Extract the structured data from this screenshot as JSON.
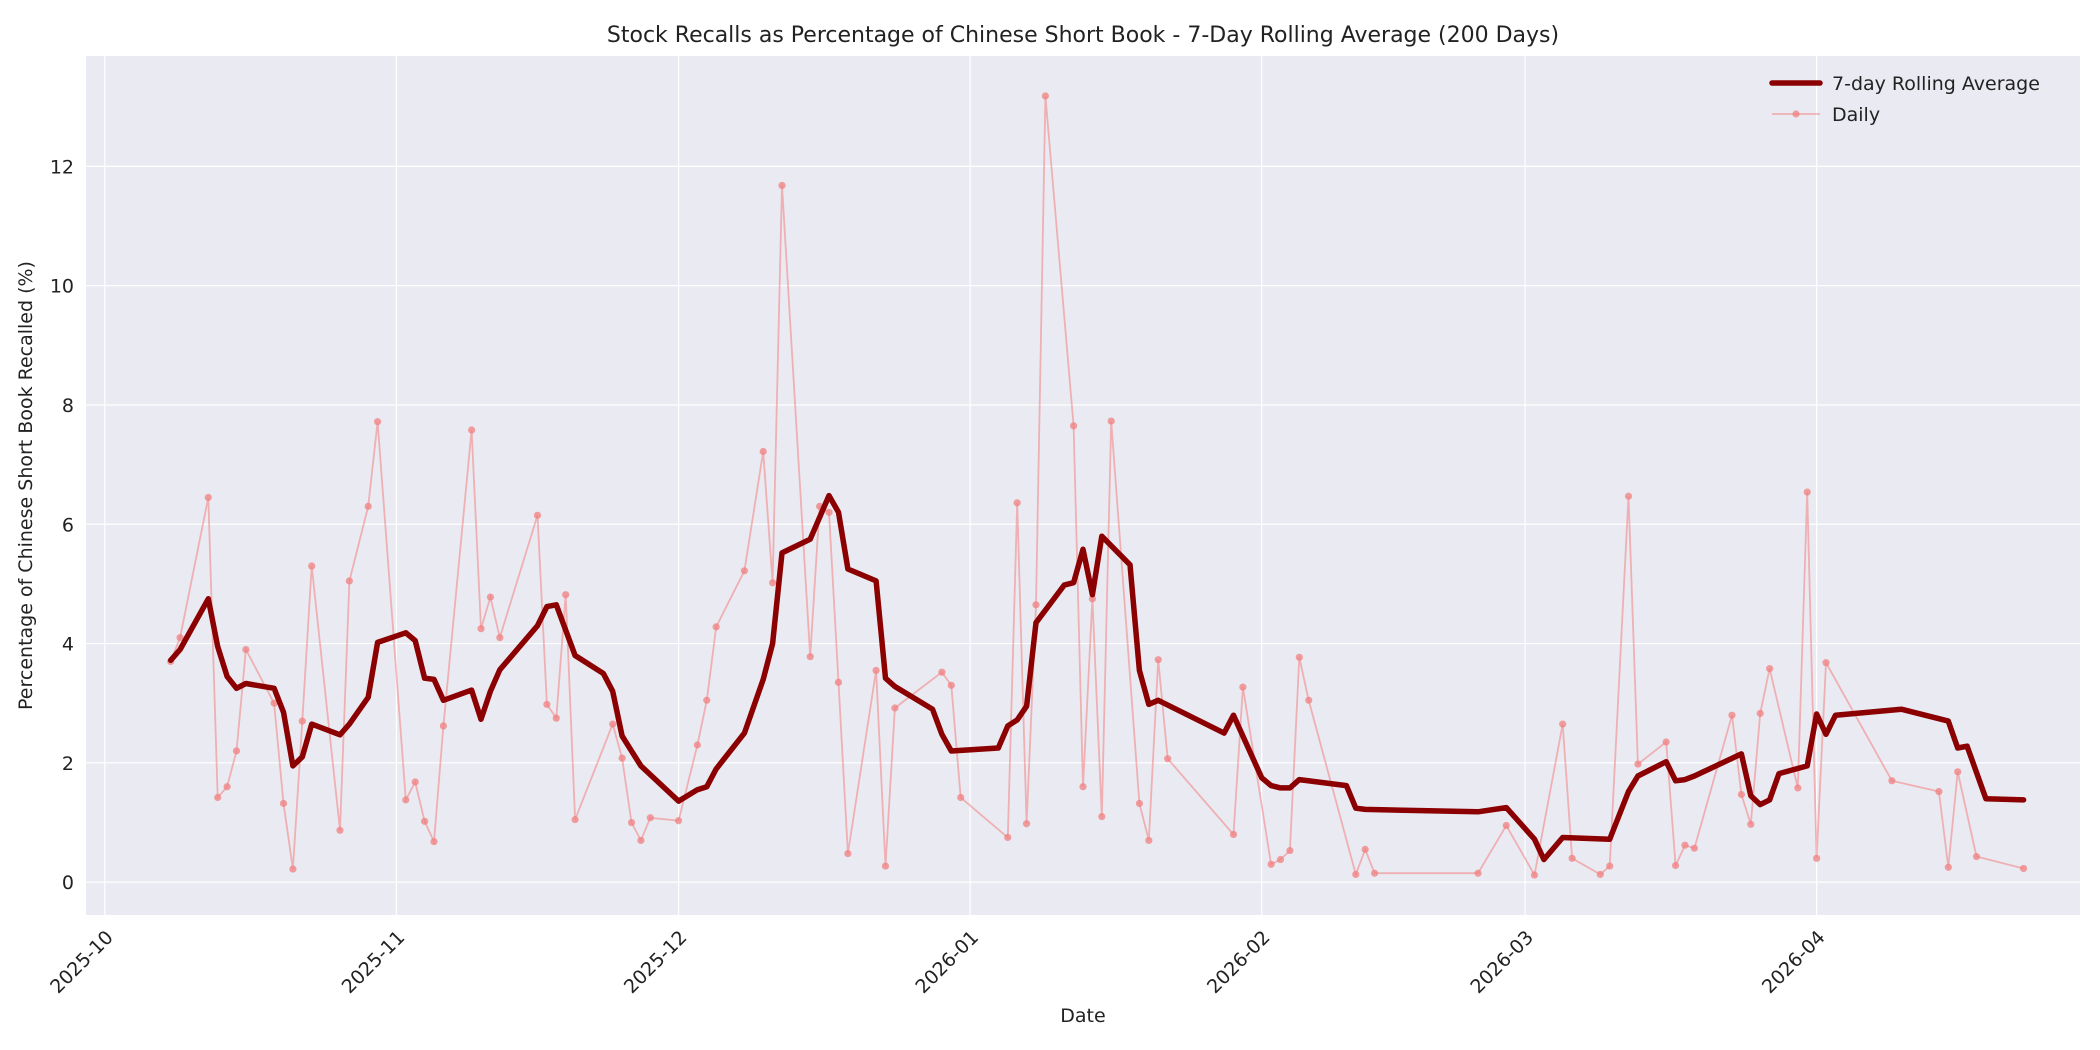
{
  "chart_data": {
    "type": "line",
    "title": "Stock Recalls as Percentage of Chinese Short Book - 7-Day Rolling Average (200 Days)",
    "xlabel": "Date",
    "ylabel": "Percentage of Chinese Short Book Recalled (%)",
    "xlim": [
      "2025-09-29",
      "2026-04-29"
    ],
    "ylim": [
      -0.55,
      13.85
    ],
    "x_ticks": [
      "2025-10",
      "2025-11",
      "2025-12",
      "2026-01",
      "2026-02",
      "2026-03",
      "2026-04"
    ],
    "y_ticks": [
      0,
      2,
      4,
      6,
      8,
      10,
      12
    ],
    "grid": true,
    "legend_position": "top-right",
    "colors": {
      "rolling": "#8b0000",
      "daily": "#f08080",
      "plot_bg": "#eaeaf2",
      "grid": "#ffffff"
    },
    "series": [
      {
        "name": "7-day Rolling Average",
        "style": "thick-line",
        "color": "#8b0000",
        "points": [
          [
            "2025-10-08",
            3.72
          ],
          [
            "2025-10-09",
            3.9
          ],
          [
            "2025-10-12",
            4.75
          ],
          [
            "2025-10-13",
            3.95
          ],
          [
            "2025-10-14",
            3.45
          ],
          [
            "2025-10-15",
            3.25
          ],
          [
            "2025-10-16",
            3.33
          ],
          [
            "2025-10-19",
            3.25
          ],
          [
            "2025-10-20",
            2.85
          ],
          [
            "2025-10-21",
            1.95
          ],
          [
            "2025-10-22",
            2.1
          ],
          [
            "2025-10-23",
            2.65
          ],
          [
            "2025-10-26",
            2.47
          ],
          [
            "2025-10-27",
            2.65
          ],
          [
            "2025-10-29",
            3.1
          ],
          [
            "2025-10-30",
            4.02
          ],
          [
            "2025-11-02",
            4.18
          ],
          [
            "2025-11-03",
            4.05
          ],
          [
            "2025-11-04",
            3.42
          ],
          [
            "2025-11-05",
            3.4
          ],
          [
            "2025-11-06",
            3.05
          ],
          [
            "2025-11-09",
            3.22
          ],
          [
            "2025-11-10",
            2.73
          ],
          [
            "2025-11-11",
            3.2
          ],
          [
            "2025-11-12",
            3.56
          ],
          [
            "2025-11-16",
            4.3
          ],
          [
            "2025-11-17",
            4.62
          ],
          [
            "2025-11-18",
            4.65
          ],
          [
            "2025-11-20",
            3.8
          ],
          [
            "2025-11-23",
            3.5
          ],
          [
            "2025-11-24",
            3.2
          ],
          [
            "2025-11-25",
            2.45
          ],
          [
            "2025-11-27",
            1.95
          ],
          [
            "2025-12-01",
            1.36
          ],
          [
            "2025-12-03",
            1.55
          ],
          [
            "2025-12-04",
            1.6
          ],
          [
            "2025-12-05",
            1.9
          ],
          [
            "2025-12-08",
            2.5
          ],
          [
            "2025-12-10",
            3.4
          ],
          [
            "2025-12-11",
            4.0
          ],
          [
            "2025-12-12",
            5.52
          ],
          [
            "2025-12-15",
            5.75
          ],
          [
            "2025-12-17",
            6.48
          ],
          [
            "2025-12-18",
            6.2
          ],
          [
            "2025-12-19",
            5.25
          ],
          [
            "2025-12-22",
            5.05
          ],
          [
            "2025-12-23",
            3.42
          ],
          [
            "2025-12-24",
            3.28
          ],
          [
            "2025-12-28",
            2.9
          ],
          [
            "2025-12-29",
            2.48
          ],
          [
            "2025-12-30",
            2.2
          ],
          [
            "2026-01-04",
            2.25
          ],
          [
            "2026-01-05",
            2.62
          ],
          [
            "2026-01-06",
            2.72
          ],
          [
            "2026-01-07",
            2.95
          ],
          [
            "2026-01-08",
            4.35
          ],
          [
            "2026-01-11",
            4.98
          ],
          [
            "2026-01-12",
            5.02
          ],
          [
            "2026-01-13",
            5.58
          ],
          [
            "2026-01-14",
            4.82
          ],
          [
            "2026-01-15",
            5.8
          ],
          [
            "2026-01-18",
            5.32
          ],
          [
            "2026-01-19",
            3.55
          ],
          [
            "2026-01-20",
            2.98
          ],
          [
            "2026-01-21",
            3.05
          ],
          [
            "2026-01-28",
            2.5
          ],
          [
            "2026-01-29",
            2.8
          ],
          [
            "2026-02-01",
            1.75
          ],
          [
            "2026-02-02",
            1.62
          ],
          [
            "2026-02-03",
            1.58
          ],
          [
            "2026-02-04",
            1.58
          ],
          [
            "2026-02-05",
            1.72
          ],
          [
            "2026-02-10",
            1.62
          ],
          [
            "2026-02-11",
            1.24
          ],
          [
            "2026-02-12",
            1.22
          ],
          [
            "2026-02-24",
            1.18
          ],
          [
            "2026-02-27",
            1.25
          ],
          [
            "2026-03-02",
            0.72
          ],
          [
            "2026-03-03",
            0.38
          ],
          [
            "2026-03-05",
            0.75
          ],
          [
            "2026-03-10",
            0.72
          ],
          [
            "2026-03-12",
            1.52
          ],
          [
            "2026-03-13",
            1.78
          ],
          [
            "2026-03-16",
            2.02
          ],
          [
            "2026-03-17",
            1.7
          ],
          [
            "2026-03-18",
            1.72
          ],
          [
            "2026-03-19",
            1.78
          ],
          [
            "2026-03-24",
            2.15
          ],
          [
            "2026-03-25",
            1.45
          ],
          [
            "2026-03-26",
            1.3
          ],
          [
            "2026-03-27",
            1.38
          ],
          [
            "2026-03-28",
            1.82
          ],
          [
            "2026-03-31",
            1.95
          ],
          [
            "2026-04-01",
            2.82
          ],
          [
            "2026-04-02",
            2.48
          ],
          [
            "2026-04-03",
            2.8
          ],
          [
            "2026-04-10",
            2.9
          ],
          [
            "2026-04-15",
            2.7
          ],
          [
            "2026-04-16",
            2.25
          ],
          [
            "2026-04-17",
            2.28
          ],
          [
            "2026-04-19",
            1.4
          ],
          [
            "2026-04-23",
            1.38
          ]
        ]
      },
      {
        "name": "Daily",
        "style": "thin-line-markers",
        "color": "#f08080",
        "points": [
          [
            "2025-10-08",
            3.7
          ],
          [
            "2025-10-09",
            4.1
          ],
          [
            "2025-10-12",
            6.45
          ],
          [
            "2025-10-13",
            1.42
          ],
          [
            "2025-10-14",
            1.6
          ],
          [
            "2025-10-15",
            2.2
          ],
          [
            "2025-10-16",
            3.9
          ],
          [
            "2025-10-19",
            3.0
          ],
          [
            "2025-10-20",
            1.32
          ],
          [
            "2025-10-21",
            0.22
          ],
          [
            "2025-10-22",
            2.7
          ],
          [
            "2025-10-23",
            5.3
          ],
          [
            "2025-10-26",
            0.87
          ],
          [
            "2025-10-27",
            5.05
          ],
          [
            "2025-10-29",
            6.3
          ],
          [
            "2025-10-30",
            7.72
          ],
          [
            "2025-11-02",
            1.38
          ],
          [
            "2025-11-03",
            1.68
          ],
          [
            "2025-11-04",
            1.02
          ],
          [
            "2025-11-05",
            0.68
          ],
          [
            "2025-11-06",
            2.62
          ],
          [
            "2025-11-09",
            7.58
          ],
          [
            "2025-11-10",
            4.25
          ],
          [
            "2025-11-11",
            4.78
          ],
          [
            "2025-11-12",
            4.1
          ],
          [
            "2025-11-16",
            6.15
          ],
          [
            "2025-11-17",
            2.98
          ],
          [
            "2025-11-18",
            2.75
          ],
          [
            "2025-11-19",
            4.82
          ],
          [
            "2025-11-20",
            1.05
          ],
          [
            "2025-11-24",
            2.65
          ],
          [
            "2025-11-25",
            2.08
          ],
          [
            "2025-11-26",
            1.0
          ],
          [
            "2025-11-27",
            0.7
          ],
          [
            "2025-11-28",
            1.08
          ],
          [
            "2025-12-01",
            1.03
          ],
          [
            "2025-12-03",
            2.3
          ],
          [
            "2025-12-04",
            3.05
          ],
          [
            "2025-12-05",
            4.28
          ],
          [
            "2025-12-08",
            5.22
          ],
          [
            "2025-12-10",
            7.22
          ],
          [
            "2025-12-11",
            5.02
          ],
          [
            "2025-12-12",
            11.68
          ],
          [
            "2025-12-15",
            3.78
          ],
          [
            "2025-12-16",
            6.3
          ],
          [
            "2025-12-17",
            6.2
          ],
          [
            "2025-12-18",
            3.35
          ],
          [
            "2025-12-19",
            0.48
          ],
          [
            "2025-12-22",
            3.55
          ],
          [
            "2025-12-23",
            0.27
          ],
          [
            "2025-12-24",
            2.92
          ],
          [
            "2025-12-29",
            3.52
          ],
          [
            "2025-12-30",
            3.3
          ],
          [
            "2025-12-31",
            1.42
          ],
          [
            "2026-01-05",
            0.75
          ],
          [
            "2026-01-06",
            6.36
          ],
          [
            "2026-01-07",
            0.98
          ],
          [
            "2026-01-08",
            4.65
          ],
          [
            "2026-01-09",
            13.18
          ],
          [
            "2026-01-12",
            7.65
          ],
          [
            "2026-01-13",
            1.6
          ],
          [
            "2026-01-14",
            4.75
          ],
          [
            "2026-01-15",
            1.1
          ],
          [
            "2026-01-16",
            7.73
          ],
          [
            "2026-01-19",
            1.32
          ],
          [
            "2026-01-20",
            0.7
          ],
          [
            "2026-01-21",
            3.73
          ],
          [
            "2026-01-22",
            2.07
          ],
          [
            "2026-01-29",
            0.8
          ],
          [
            "2026-01-30",
            3.27
          ],
          [
            "2026-02-02",
            0.3
          ],
          [
            "2026-02-03",
            0.38
          ],
          [
            "2026-02-04",
            0.53
          ],
          [
            "2026-02-05",
            3.77
          ],
          [
            "2026-02-06",
            3.05
          ],
          [
            "2026-02-11",
            0.13
          ],
          [
            "2026-02-12",
            0.55
          ],
          [
            "2026-02-13",
            0.15
          ],
          [
            "2026-02-24",
            0.15
          ],
          [
            "2026-02-27",
            0.95
          ],
          [
            "2026-03-02",
            0.12
          ],
          [
            "2026-03-05",
            2.65
          ],
          [
            "2026-03-06",
            0.4
          ],
          [
            "2026-03-09",
            0.13
          ],
          [
            "2026-03-10",
            0.27
          ],
          [
            "2026-03-12",
            6.47
          ],
          [
            "2026-03-13",
            1.98
          ],
          [
            "2026-03-16",
            2.35
          ],
          [
            "2026-03-17",
            0.28
          ],
          [
            "2026-03-18",
            0.62
          ],
          [
            "2026-03-19",
            0.57
          ],
          [
            "2026-03-23",
            2.8
          ],
          [
            "2026-03-24",
            1.47
          ],
          [
            "2026-03-25",
            0.97
          ],
          [
            "2026-03-26",
            2.83
          ],
          [
            "2026-03-27",
            3.58
          ],
          [
            "2026-03-30",
            1.58
          ],
          [
            "2026-03-31",
            6.54
          ],
          [
            "2026-04-01",
            0.4
          ],
          [
            "2026-04-02",
            3.68
          ],
          [
            "2026-04-09",
            1.7
          ],
          [
            "2026-04-14",
            1.52
          ],
          [
            "2026-04-15",
            0.25
          ],
          [
            "2026-04-16",
            1.85
          ],
          [
            "2026-04-18",
            0.43
          ],
          [
            "2026-04-23",
            0.23
          ]
        ]
      }
    ]
  }
}
